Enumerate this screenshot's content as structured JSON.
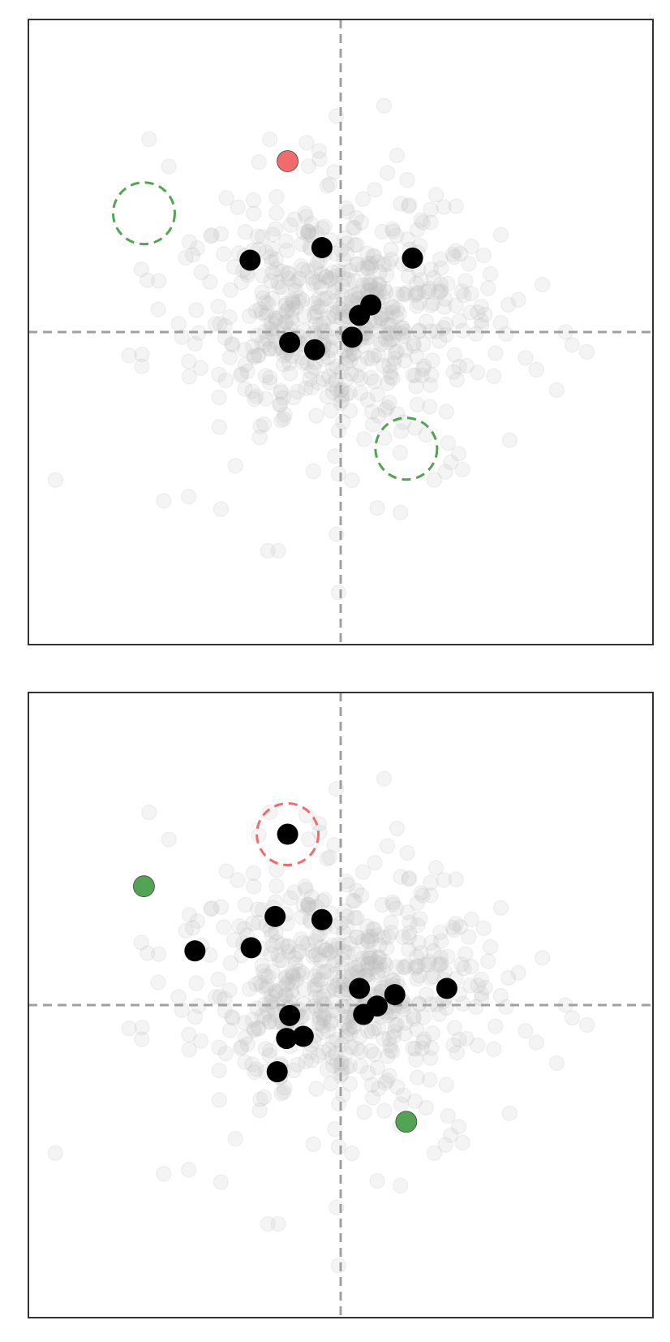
{
  "chart_data": [
    {
      "type": "scatter",
      "xlim": [
        -3.0,
        3.0
      ],
      "ylim": [
        -3.0,
        3.0
      ],
      "reference_lines": {
        "x": 0.0,
        "y": 0.0
      },
      "colors": {
        "accent_red": "#f26b6b",
        "accent_green": "#52a352",
        "points": "#000000",
        "background": "#bdbdbd"
      },
      "points": [
        {
          "x": -0.87,
          "y": 0.69
        },
        {
          "x": -0.18,
          "y": 0.81
        },
        {
          "x": 0.69,
          "y": 0.71
        },
        {
          "x": 0.29,
          "y": 0.26
        },
        {
          "x": 0.18,
          "y": 0.16
        },
        {
          "x": 0.11,
          "y": -0.05
        },
        {
          "x": -0.49,
          "y": -0.1
        },
        {
          "x": -0.25,
          "y": -0.17
        }
      ],
      "highlight_points": [
        {
          "x": -0.51,
          "y": 1.64,
          "color": "#f26b6b"
        }
      ],
      "circled_points": [
        {
          "x": -1.89,
          "y": 1.14,
          "color": "#52a352"
        },
        {
          "x": 0.63,
          "y": -1.12,
          "color": "#52a352"
        }
      ]
    },
    {
      "type": "scatter",
      "xlim": [
        -3.0,
        3.0
      ],
      "ylim": [
        -3.0,
        3.0
      ],
      "reference_lines": {
        "x": 0.0,
        "y": 0.0
      },
      "colors": {
        "accent_red": "#f26b6b",
        "accent_green": "#52a352",
        "points": "#000000",
        "background": "#bdbdbd"
      },
      "points": [
        {
          "x": -0.51,
          "y": 1.64
        },
        {
          "x": -0.63,
          "y": 0.85
        },
        {
          "x": -0.18,
          "y": 0.82
        },
        {
          "x": -1.4,
          "y": 0.52
        },
        {
          "x": -0.86,
          "y": 0.55
        },
        {
          "x": 0.18,
          "y": 0.16
        },
        {
          "x": 0.52,
          "y": 0.1
        },
        {
          "x": 1.02,
          "y": 0.16
        },
        {
          "x": 0.35,
          "y": -0.01
        },
        {
          "x": 0.22,
          "y": -0.09
        },
        {
          "x": -0.49,
          "y": -0.1
        },
        {
          "x": -0.36,
          "y": -0.3
        },
        {
          "x": -0.52,
          "y": -0.32
        },
        {
          "x": -0.61,
          "y": -0.64
        }
      ],
      "highlight_points": [
        {
          "x": -1.89,
          "y": 1.14,
          "color": "#52a352"
        },
        {
          "x": 0.63,
          "y": -1.12,
          "color": "#52a352"
        }
      ],
      "circled_points": [
        {
          "x": -0.51,
          "y": 1.64,
          "color": "#f26b6b"
        }
      ]
    }
  ]
}
